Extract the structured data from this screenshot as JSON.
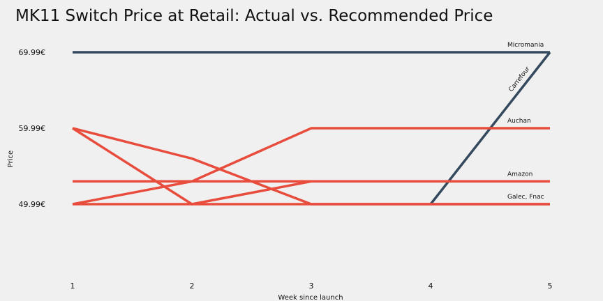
{
  "chart_data": {
    "type": "line",
    "title": "MK11 Switch Price at Retail: Actual vs. Recommended Price",
    "xlabel": "Week since launch",
    "ylabel": "Price",
    "x": [
      1,
      2,
      3,
      4,
      5
    ],
    "xlim": [
      0.9,
      5.3
    ],
    "ylim": [
      40.5,
      72.5
    ],
    "yticks": [
      49.99,
      59.99,
      69.99
    ],
    "ytick_labels": [
      "49.99€",
      "59.99€",
      "69.99€"
    ],
    "grid": false,
    "legend": "none",
    "colors": {
      "recommended": "#34495e",
      "retail": "#e74c3c"
    },
    "series": [
      {
        "name": "Micromania",
        "label_style": "horizontal",
        "color": "#34495e",
        "values": [
          69.99,
          69.99,
          69.99,
          69.99,
          69.99
        ]
      },
      {
        "name": "Carrefour",
        "label_style": "rotated",
        "color": "#34495e",
        "values": [
          null,
          null,
          null,
          49.99,
          69.99
        ]
      },
      {
        "name": "Auchan",
        "label_style": "horizontal",
        "color": "#e74c3c",
        "values": [
          49.99,
          52.99,
          59.99,
          59.99,
          59.99
        ]
      },
      {
        "name": "Amazon",
        "label_style": "horizontal",
        "color": "#e74c3c",
        "values": [
          52.99,
          52.99,
          52.99,
          52.99,
          52.99
        ]
      },
      {
        "name": "Galec, Fnac",
        "label_style": "horizontal",
        "color": "#e74c3c",
        "values": [
          49.99,
          49.99,
          49.99,
          49.99,
          49.99
        ]
      },
      {
        "name": "",
        "label_style": "none",
        "color": "#e74c3c",
        "values": [
          59.99,
          49.99,
          52.99,
          52.99,
          52.99
        ]
      },
      {
        "name": "",
        "label_style": "none",
        "color": "#e74c3c",
        "values": [
          59.99,
          55.99,
          49.99,
          49.99,
          49.99
        ]
      }
    ]
  }
}
